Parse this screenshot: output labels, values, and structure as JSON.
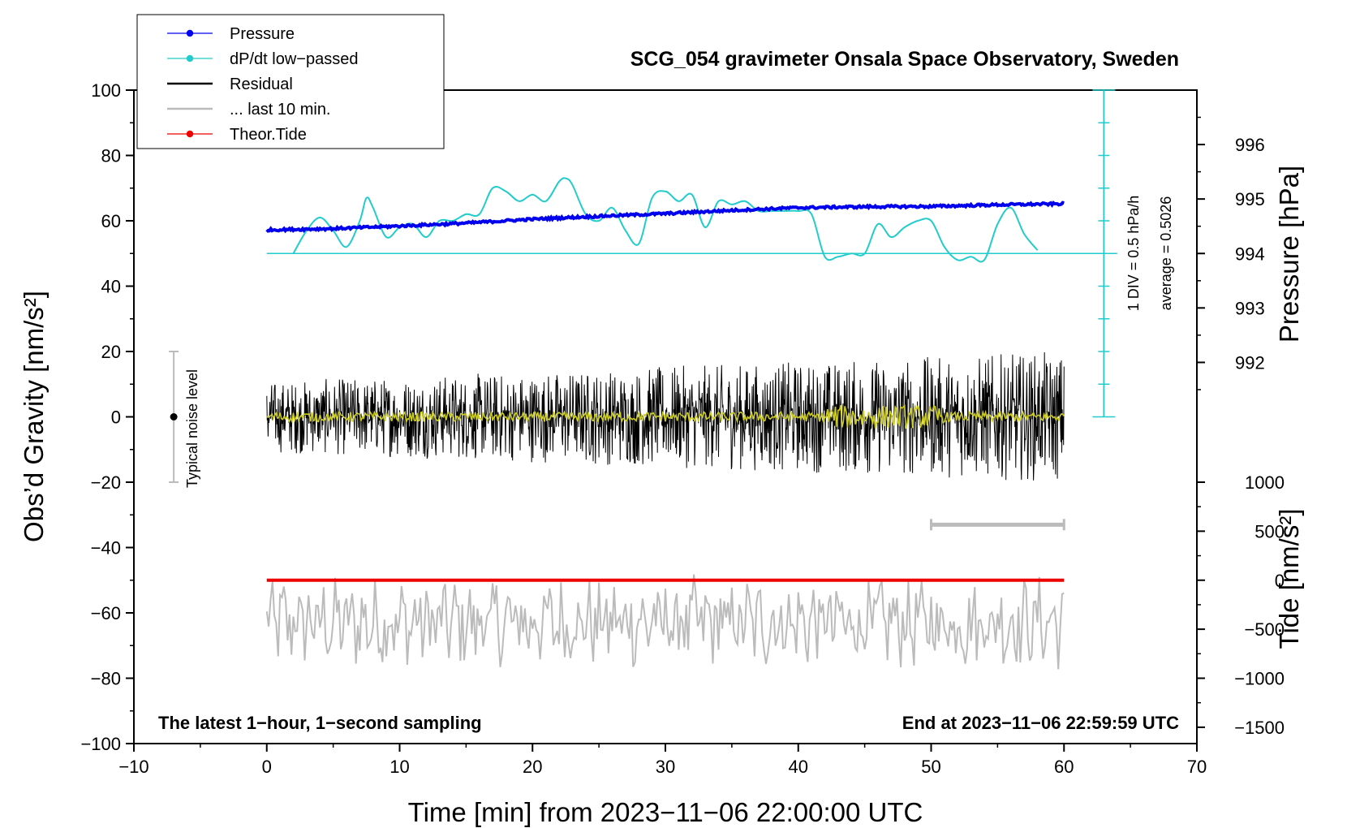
{
  "chart_data": {
    "type": "line",
    "title": "SCG_054 gravimeter Onsala Space Observatory, Sweden",
    "xlabel": "Time [min] from 2023−11−06 22:00:00 UTC",
    "ylabel_left": "Obs’d Gravity [nm/s²]",
    "ylabel_right_pressure": "Pressure [hPa]",
    "ylabel_right_tide": "Tide [nm/s²]",
    "xlim": [
      -10,
      70
    ],
    "ylim_left": [
      -100,
      100
    ],
    "x_ticks": [
      -10,
      0,
      10,
      20,
      30,
      40,
      50,
      60,
      70
    ],
    "x_tick_labels": [
      "−10",
      "0",
      "10",
      "20",
      "30",
      "40",
      "50",
      "60",
      "70"
    ],
    "y_left_ticks": [
      -100,
      -80,
      -60,
      -40,
      -20,
      0,
      20,
      40,
      60,
      80,
      100
    ],
    "y_left_tick_labels": [
      "−100",
      "−80",
      "−60",
      "−40",
      "−20",
      "0",
      "20",
      "40",
      "60",
      "80",
      "100"
    ],
    "pressure_axis": {
      "ticks": [
        992,
        993,
        994,
        995,
        996
      ],
      "tick_labels": [
        "992",
        "993",
        "994",
        "995",
        "996"
      ],
      "map": {
        "value_at_y50": 994,
        "left_units_per_hPa": 16.67
      }
    },
    "tide_axis": {
      "ticks": [
        -1500,
        -1000,
        -500,
        0,
        500,
        1000
      ],
      "tick_labels": [
        "−1500",
        "−1000",
        "−500",
        "0",
        "500",
        "1000"
      ],
      "map": {
        "value_at_y_minus50": 0,
        "left_units_per_nm": 0.03
      }
    },
    "legend": [
      {
        "label": "Pressure",
        "color": "#0000ee",
        "marker": true
      },
      {
        "label": "dP/dt low−passed",
        "color": "#22cccc",
        "marker": true
      },
      {
        "label": "Residual",
        "color": "#000000",
        "marker": false
      },
      {
        "label": "... last 10 min.",
        "color": "#bbbbbb",
        "marker": false
      },
      {
        "label": "Theor.Tide",
        "color": "#ee0000",
        "marker": true
      }
    ],
    "legend_position": "top-left",
    "annotations": {
      "noise_label": "Typical noise level",
      "div_label": "1 DIV = 0.5 hPa/h",
      "average_label": "average = 0.5026",
      "footer_left": "The latest 1−hour, 1−second sampling",
      "footer_right": "End at 2023−11−06 22:59:59 UTC"
    },
    "noise_bar": {
      "x": -7,
      "center": 0,
      "half_range": 20
    },
    "scale_bar_10min": {
      "x_start": 50,
      "x_end": 60,
      "y": -33
    },
    "dpdt_baseline": 50,
    "series": [
      {
        "name": "Pressure",
        "color": "#0000ee",
        "x": [
          0,
          5,
          10,
          15,
          20,
          25,
          30,
          35,
          40,
          45,
          50,
          55,
          60
        ],
        "values": [
          57.2,
          57.6,
          58.4,
          59.3,
          60.5,
          61.4,
          62.2,
          63.2,
          64.0,
          64.3,
          64.4,
          64.9,
          65.2
        ]
      },
      {
        "name": "dP/dt low-passed",
        "color": "#22cccc",
        "x": [
          2,
          3,
          4,
          5,
          6,
          7,
          7.5,
          8,
          9,
          10,
          11,
          12,
          13,
          14,
          15,
          16,
          17,
          18,
          19,
          20,
          21,
          22,
          22.5,
          23,
          24,
          25,
          26,
          27,
          28,
          29,
          30,
          31,
          32,
          33,
          34,
          35,
          36,
          37,
          38,
          39,
          40,
          41,
          42,
          43,
          44,
          45,
          46,
          47,
          48,
          49,
          50,
          51,
          52,
          53,
          54,
          55,
          56,
          57,
          58
        ],
        "values": [
          50,
          57,
          61,
          57,
          52,
          60,
          67,
          64,
          55,
          58,
          59,
          55,
          60,
          60,
          62,
          62,
          70,
          69,
          66,
          68,
          66,
          72,
          73,
          71,
          62,
          60,
          64,
          57,
          53,
          67,
          69,
          66,
          68,
          58,
          66,
          65,
          66,
          63,
          63,
          63,
          63,
          62,
          49,
          49,
          50,
          50,
          59,
          55,
          58,
          60,
          60,
          52,
          48,
          49,
          48,
          59,
          64,
          56,
          51
        ]
      },
      {
        "name": "Residual",
        "color": "#000000",
        "x_range": [
          0,
          60
        ],
        "center": 0,
        "amplitude_range": [
          -21,
          20
        ]
      },
      {
        "name": "Residual low-pass",
        "color": "#cccc22",
        "x_range": [
          0,
          60
        ],
        "center": 0,
        "amplitude_range": [
          -6,
          6
        ]
      },
      {
        "name": "... last 10 min.",
        "color": "#bbbbbb",
        "x_range": [
          0,
          60
        ],
        "center": -63,
        "amplitude_range": [
          -84,
          -43
        ]
      },
      {
        "name": "Theor.Tide",
        "color": "#ee0000",
        "x": [
          0,
          60
        ],
        "values": [
          0,
          0
        ]
      }
    ]
  }
}
